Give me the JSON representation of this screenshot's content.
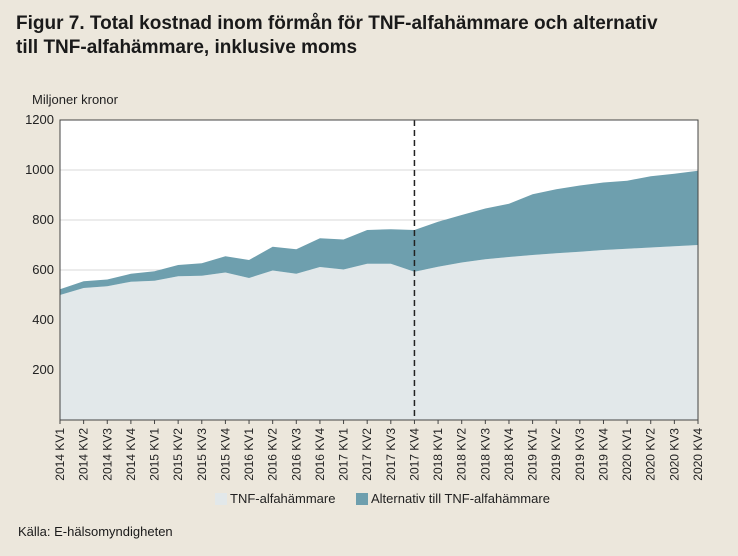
{
  "title_line1": "Figur 7. Total kostnad inom förmån för TNF-alfahämmare och alternativ",
  "title_line2": "till TNF-alfahämmare, inklusive moms",
  "source": "Källa: E-hälsomyndigheten",
  "chart_data": {
    "type": "area",
    "stacked": true,
    "ylabel": "Miljoner kronor",
    "ylim": [
      0,
      1200
    ],
    "yticks": [
      200,
      400,
      600,
      800,
      1000,
      1200
    ],
    "grid": true,
    "legend_position": "bottom",
    "forecast_marker_after": "2017 KV4",
    "categories": [
      "2014 KV1",
      "2014 KV2",
      "2014 KV3",
      "2014 KV4",
      "2015 KV1",
      "2015 KV2",
      "2015 KV3",
      "2015 KV4",
      "2016 KV1",
      "2016 KV2",
      "2016 KV3",
      "2016 KV4",
      "2017 KV1",
      "2017 KV2",
      "2017 KV3",
      "2017 KV4",
      "2018 KV1",
      "2018 KV2",
      "2018 KV3",
      "2018 KV4",
      "2019 KV1",
      "2019 KV2",
      "2019 KV3",
      "2019 KV4",
      "2020 KV1",
      "2020 KV2",
      "2020 KV3",
      "2020 KV4"
    ],
    "series": [
      {
        "name": "TNF-alfahämmare",
        "color": "#e2e8ea",
        "values": [
          500,
          528,
          535,
          553,
          557,
          575,
          577,
          590,
          568,
          598,
          585,
          612,
          602,
          625,
          625,
          593,
          613,
          630,
          643,
          652,
          660,
          667,
          673,
          680,
          685,
          690,
          695,
          700
        ]
      },
      {
        "name": "Alternativ till TNF-alfahämmare",
        "color": "#6e9fae",
        "values": [
          23,
          27,
          27,
          32,
          38,
          45,
          50,
          65,
          72,
          95,
          98,
          115,
          120,
          135,
          138,
          167,
          180,
          190,
          203,
          213,
          243,
          256,
          265,
          270,
          272,
          285,
          290,
          297
        ]
      }
    ]
  }
}
